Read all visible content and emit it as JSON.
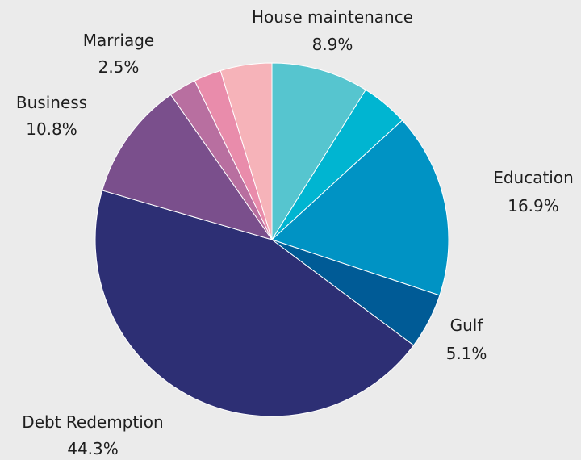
{
  "chart_data": {
    "type": "pie",
    "start": "top",
    "direction": "clockwise",
    "slices": [
      {
        "key": "house",
        "label": "House maintenance",
        "value": 8.9,
        "value_label": "8.9%",
        "color": "#56c5cf"
      },
      {
        "key": "s2",
        "label": "",
        "value": 4.3,
        "value_label": "",
        "color": "#00b5d1"
      },
      {
        "key": "education",
        "label": "Education",
        "value": 16.9,
        "value_label": "16.9%",
        "color": "#0093c4"
      },
      {
        "key": "gulf",
        "label": "Gulf",
        "value": 5.1,
        "value_label": "5.1%",
        "color": "#005b96"
      },
      {
        "key": "debt",
        "label": "Debt Redemption",
        "value": 44.3,
        "value_label": "44.3%",
        "color": "#2d2f74"
      },
      {
        "key": "business",
        "label": "Business",
        "value": 10.8,
        "value_label": "10.8%",
        "color": "#7a4f8c"
      },
      {
        "key": "s7",
        "label": "",
        "value": 2.5,
        "value_label": "",
        "color": "#b86fa0"
      },
      {
        "key": "marriage",
        "label": "Marriage",
        "value": 2.5,
        "value_label": "2.5%",
        "color": "#e98cab"
      },
      {
        "key": "s9",
        "label": "",
        "value": 4.7,
        "value_label": "",
        "color": "#f6b3b9"
      }
    ]
  }
}
